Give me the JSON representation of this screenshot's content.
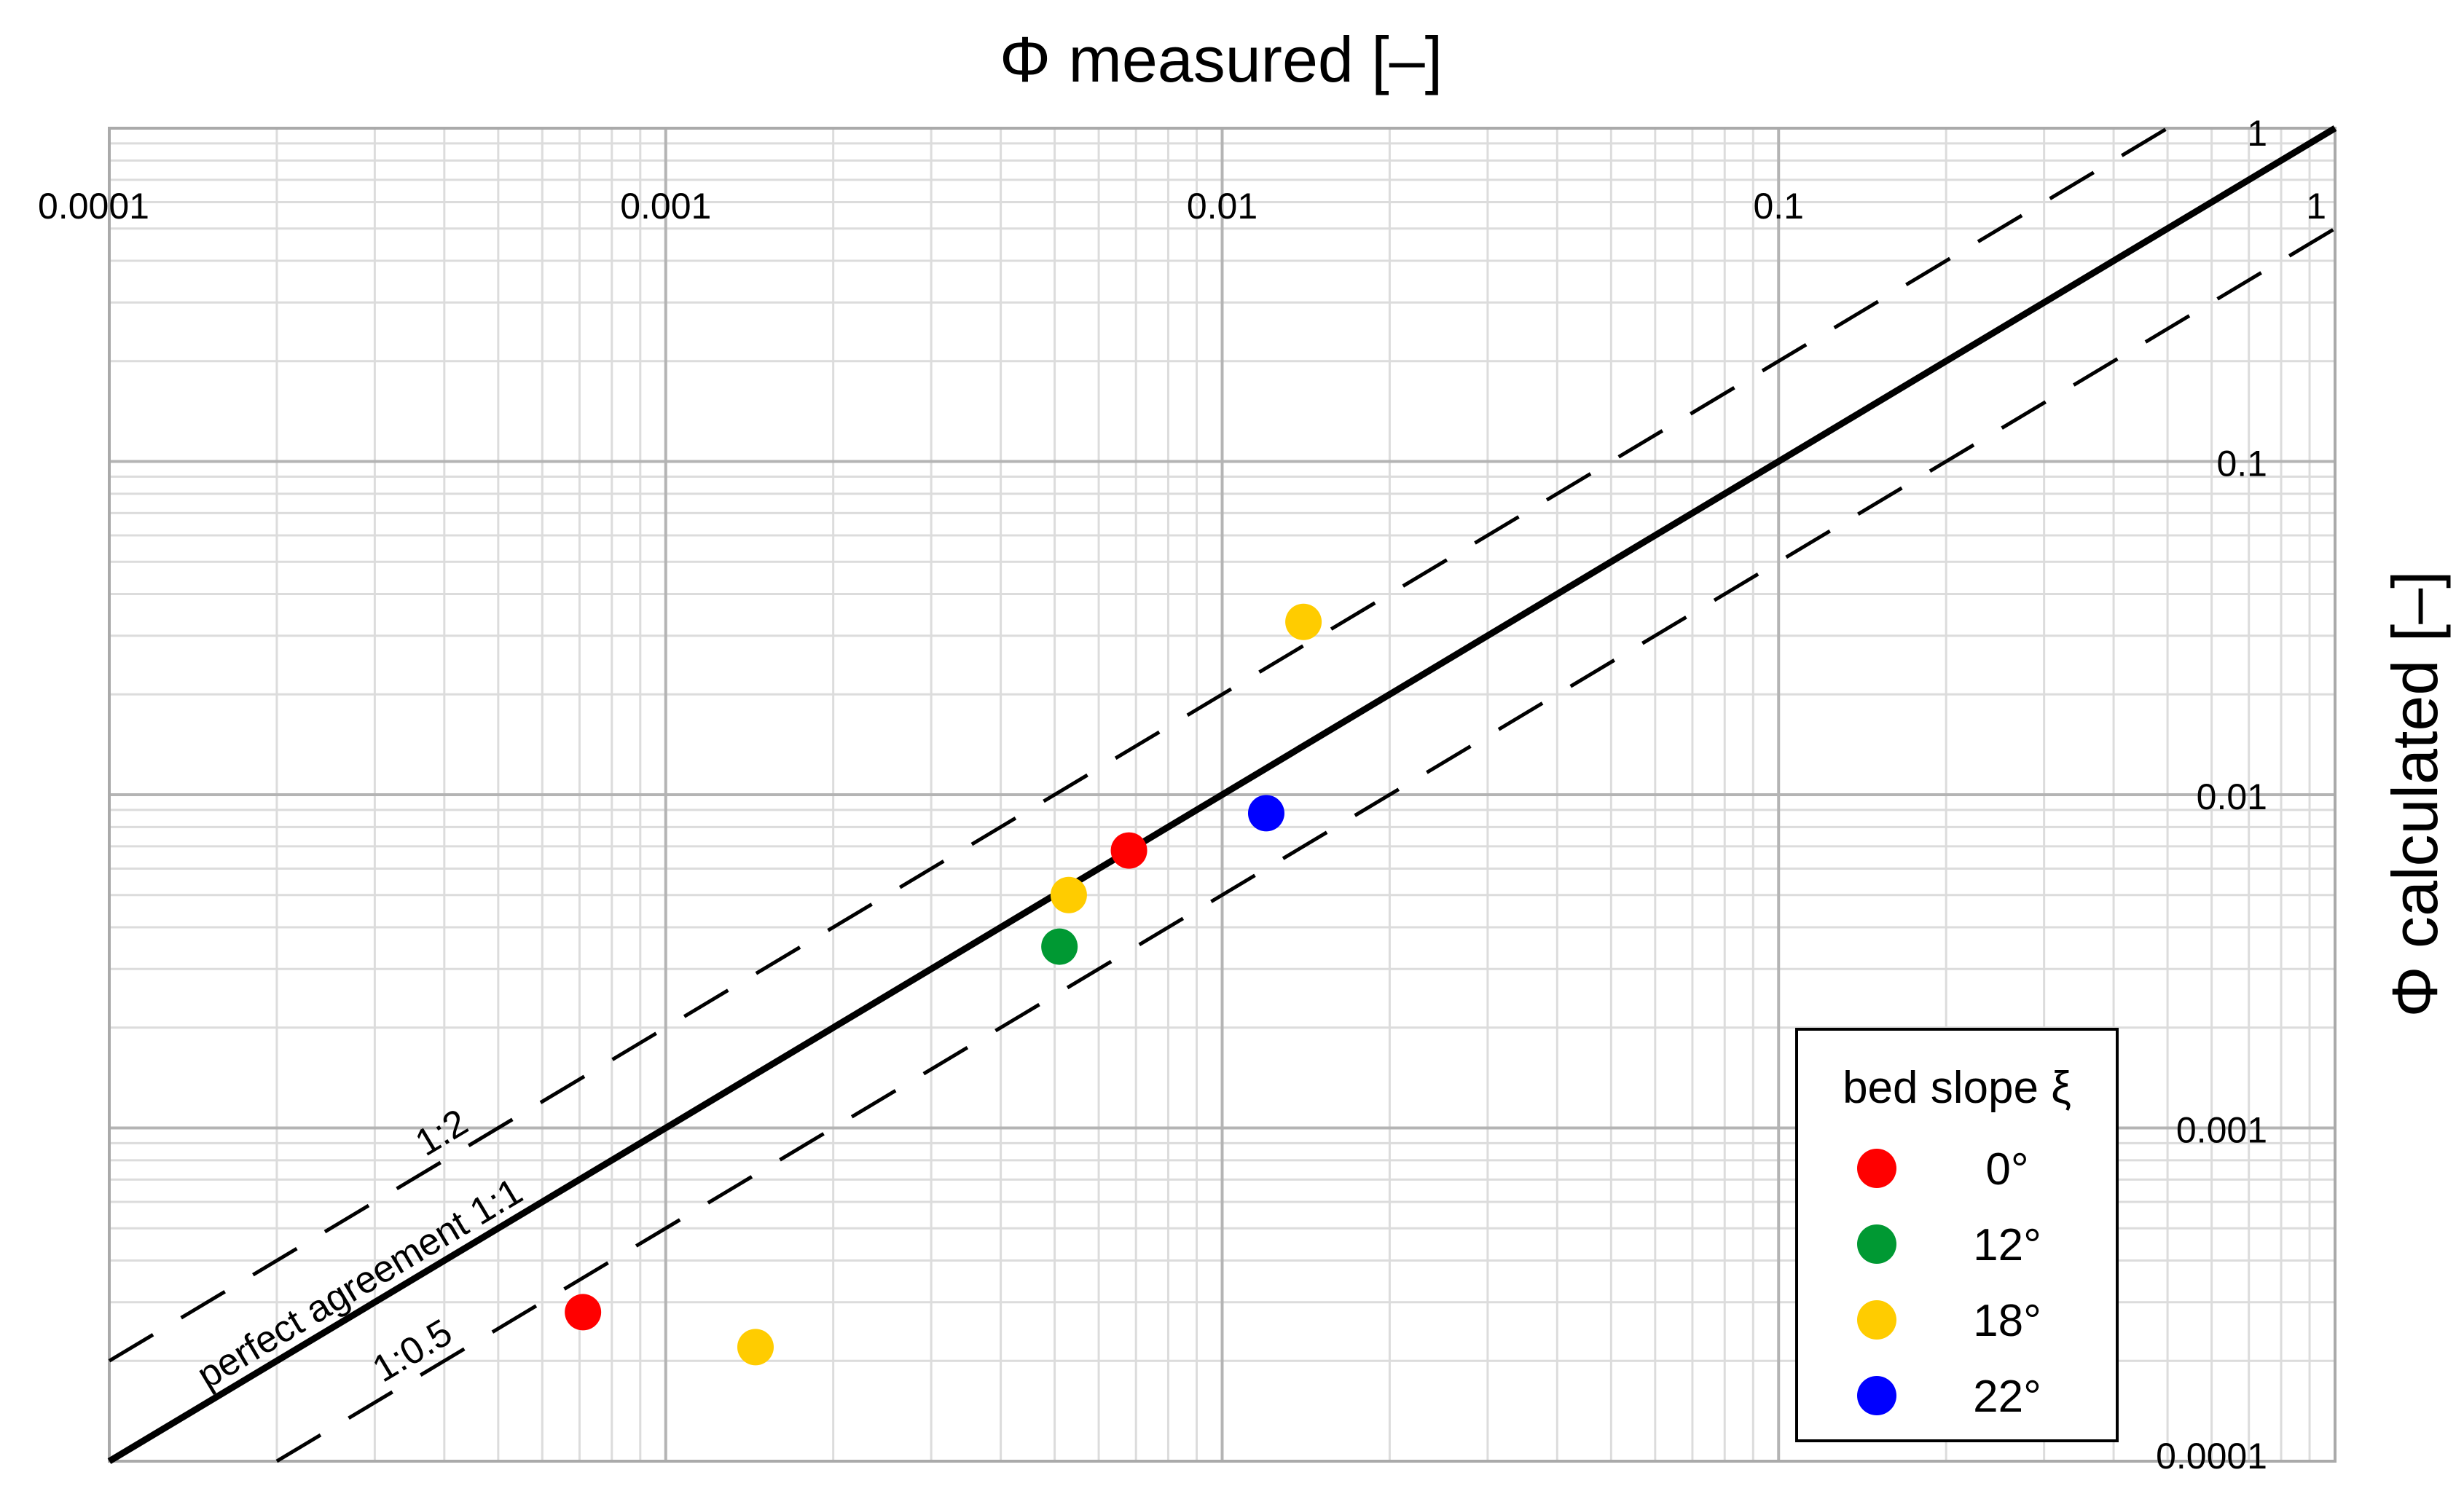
{
  "chart_data": {
    "type": "scatter",
    "xlabel": "Φ measured [–]",
    "ylabel": "Φ calculated [–]",
    "xscale": "log",
    "yscale": "log",
    "xlim": [
      0.0001,
      1
    ],
    "ylim": [
      0.0001,
      1
    ],
    "x_tick_labels": [
      "0.0001",
      "0.001",
      "0.01",
      "0.1",
      "1"
    ],
    "y_tick_labels": [
      "0.0001",
      "0.001",
      "0.01",
      "0.1",
      "1"
    ],
    "grid": true,
    "legend": {
      "title": "bed slope ξ",
      "placement": "bottom-right",
      "entries": [
        {
          "label": "0°",
          "color": "#ff0000"
        },
        {
          "label": "12°",
          "color": "#009933"
        },
        {
          "label": "18°",
          "color": "#ffcc00"
        },
        {
          "label": "22°",
          "color": "#0000ff"
        }
      ]
    },
    "reference_lines": [
      {
        "label": "perfect agreement 1:1",
        "ratio": 1,
        "style": "solid"
      },
      {
        "label": "1:2",
        "ratio": 2,
        "style": "dashed"
      },
      {
        "label": "1:0.5",
        "ratio": 0.5,
        "style": "dashed"
      }
    ],
    "series": [
      {
        "name": "0°",
        "color": "#ff0000",
        "points": [
          {
            "x": 0.00071,
            "y": 0.00028
          },
          {
            "x": 0.0068,
            "y": 0.0068
          }
        ]
      },
      {
        "name": "12°",
        "color": "#009933",
        "points": [
          {
            "x": 0.0051,
            "y": 0.0035
          }
        ]
      },
      {
        "name": "18°",
        "color": "#ffcc00",
        "points": [
          {
            "x": 0.00145,
            "y": 0.00022
          },
          {
            "x": 0.0053,
            "y": 0.005
          },
          {
            "x": 0.014,
            "y": 0.033
          }
        ]
      },
      {
        "name": "22°",
        "color": "#0000ff",
        "points": [
          {
            "x": 0.012,
            "y": 0.0088
          }
        ]
      }
    ]
  }
}
